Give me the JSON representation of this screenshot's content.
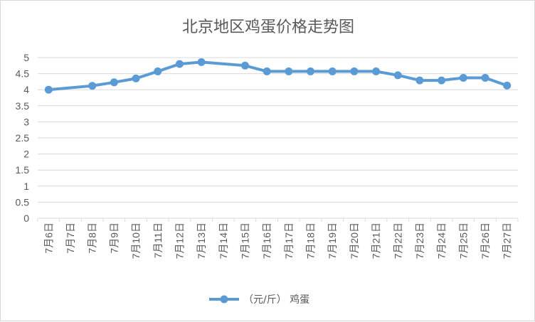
{
  "chart_data": {
    "type": "line",
    "title": "北京地区鸡蛋价格走势图",
    "xlabel": "",
    "ylabel": "",
    "categories": [
      "7月6日",
      "7月7日",
      "7月8日",
      "7月9日",
      "7月10日",
      "7月11日",
      "7月12日",
      "7月13日",
      "7月14日",
      "7月15日",
      "7月16日",
      "7月17日",
      "7月18日",
      "7月19日",
      "7月20日",
      "7月21日",
      "7月22日",
      "7月23日",
      "7月24日",
      "7月25日",
      "7月26日",
      "7月27日"
    ],
    "series": [
      {
        "name": "（元/斤） 鸡蛋",
        "color": "#5b9bd5",
        "values": [
          4.0,
          null,
          4.12,
          4.23,
          4.35,
          4.57,
          4.8,
          4.86,
          null,
          4.75,
          4.57,
          4.57,
          4.57,
          4.57,
          4.57,
          4.57,
          4.45,
          4.29,
          4.29,
          4.37,
          4.37,
          4.13
        ]
      }
    ],
    "ylim": [
      0,
      5
    ],
    "yticks": [
      "0",
      "0.5",
      "1",
      "1.5",
      "2",
      "2.5",
      "3",
      "3.5",
      "4",
      "4.5",
      "5"
    ],
    "grid": true,
    "legend": "bottom"
  }
}
